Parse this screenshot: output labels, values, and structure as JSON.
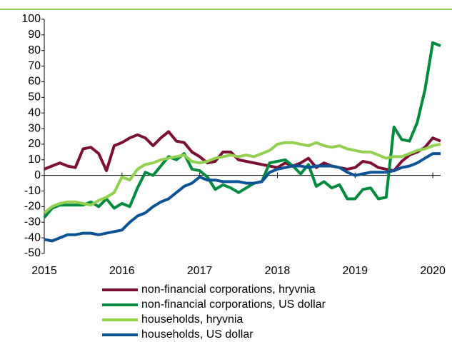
{
  "chart_data": {
    "type": "line",
    "x": [
      2015.0,
      2015.1,
      2015.2,
      2015.3,
      2015.4,
      2015.5,
      2015.6,
      2015.7,
      2015.8,
      2015.9,
      2016.0,
      2016.1,
      2016.2,
      2016.3,
      2016.4,
      2016.5,
      2016.6,
      2016.7,
      2016.8,
      2016.9,
      2017.0,
      2017.1,
      2017.2,
      2017.3,
      2017.4,
      2017.5,
      2017.6,
      2017.7,
      2017.8,
      2017.9,
      2018.0,
      2018.1,
      2018.2,
      2018.3,
      2018.4,
      2018.5,
      2018.6,
      2018.7,
      2018.8,
      2018.9,
      2019.0,
      2019.1,
      2019.2,
      2019.3,
      2019.4,
      2019.5,
      2019.6,
      2019.7,
      2019.8,
      2019.9,
      2020.0,
      2020.1
    ],
    "series": [
      {
        "name": "non-financial corporations, hryvnia",
        "color": "#7b1034",
        "values": [
          4,
          6,
          8,
          6,
          5,
          17,
          18,
          14,
          3,
          19,
          21,
          24,
          26,
          24,
          19,
          24,
          28,
          22,
          21,
          15,
          12,
          8,
          9,
          15,
          15,
          10,
          9,
          8,
          7,
          6,
          5,
          8,
          6,
          8,
          11,
          5,
          8,
          6,
          5,
          4,
          5,
          9,
          8,
          5,
          4,
          3,
          9,
          13,
          15,
          18,
          24,
          22
        ]
      },
      {
        "name": "non-financial corporations, US dollar",
        "color": "#008a3e",
        "values": [
          -27,
          -21,
          -19,
          -19,
          -19,
          -19,
          -17,
          -20,
          -15,
          -21,
          -18,
          -20,
          -8,
          2,
          0,
          6,
          12,
          10,
          14,
          4,
          3,
          -1,
          -9,
          -6,
          -8,
          -11,
          -8,
          -5,
          -4,
          8,
          9,
          10,
          6,
          1,
          7,
          -7,
          -4,
          -8,
          -6,
          -15,
          -15,
          -9,
          -8,
          -15,
          -14,
          31,
          23,
          22,
          34,
          55,
          85,
          83
        ]
      },
      {
        "name": "households, hryvnia",
        "color": "#92d050",
        "values": [
          -24,
          -20,
          -18,
          -17,
          -17,
          -18,
          -19,
          -16,
          -14,
          -11,
          -1,
          -3,
          4,
          7,
          8,
          10,
          11,
          12,
          13,
          9,
          8,
          9,
          11,
          12,
          13,
          12,
          13,
          12,
          14,
          16,
          20,
          21,
          21,
          20,
          19,
          21,
          19,
          18,
          19,
          17,
          16,
          15,
          15,
          13,
          11,
          12,
          12,
          14,
          16,
          17,
          19,
          20
        ]
      },
      {
        "name": "households, US dollar",
        "color": "#0b5394",
        "values": [
          -41,
          -42,
          -40,
          -38,
          -38,
          -37,
          -37,
          -38,
          -37,
          -36,
          -35,
          -30,
          -26,
          -24,
          -20,
          -17,
          -15,
          -11,
          -7,
          -5,
          -1,
          -3,
          -3,
          -4,
          -4,
          -4,
          -5,
          -5,
          -4,
          2,
          4,
          5,
          6,
          6,
          5,
          6,
          6,
          6,
          5,
          2,
          0,
          1,
          2,
          2,
          2,
          3,
          5,
          6,
          8,
          11,
          14,
          14
        ]
      }
    ],
    "xlim": [
      2015,
      2020.1
    ],
    "xticks": [
      2015,
      2016,
      2017,
      2018,
      2019,
      2020
    ],
    "ylim": [
      -50,
      100
    ],
    "yticks": [
      -50,
      -40,
      -30,
      -20,
      -10,
      0,
      10,
      20,
      30,
      40,
      50,
      60,
      70,
      80,
      90,
      100
    ],
    "grid": false,
    "legend": "bottom"
  }
}
